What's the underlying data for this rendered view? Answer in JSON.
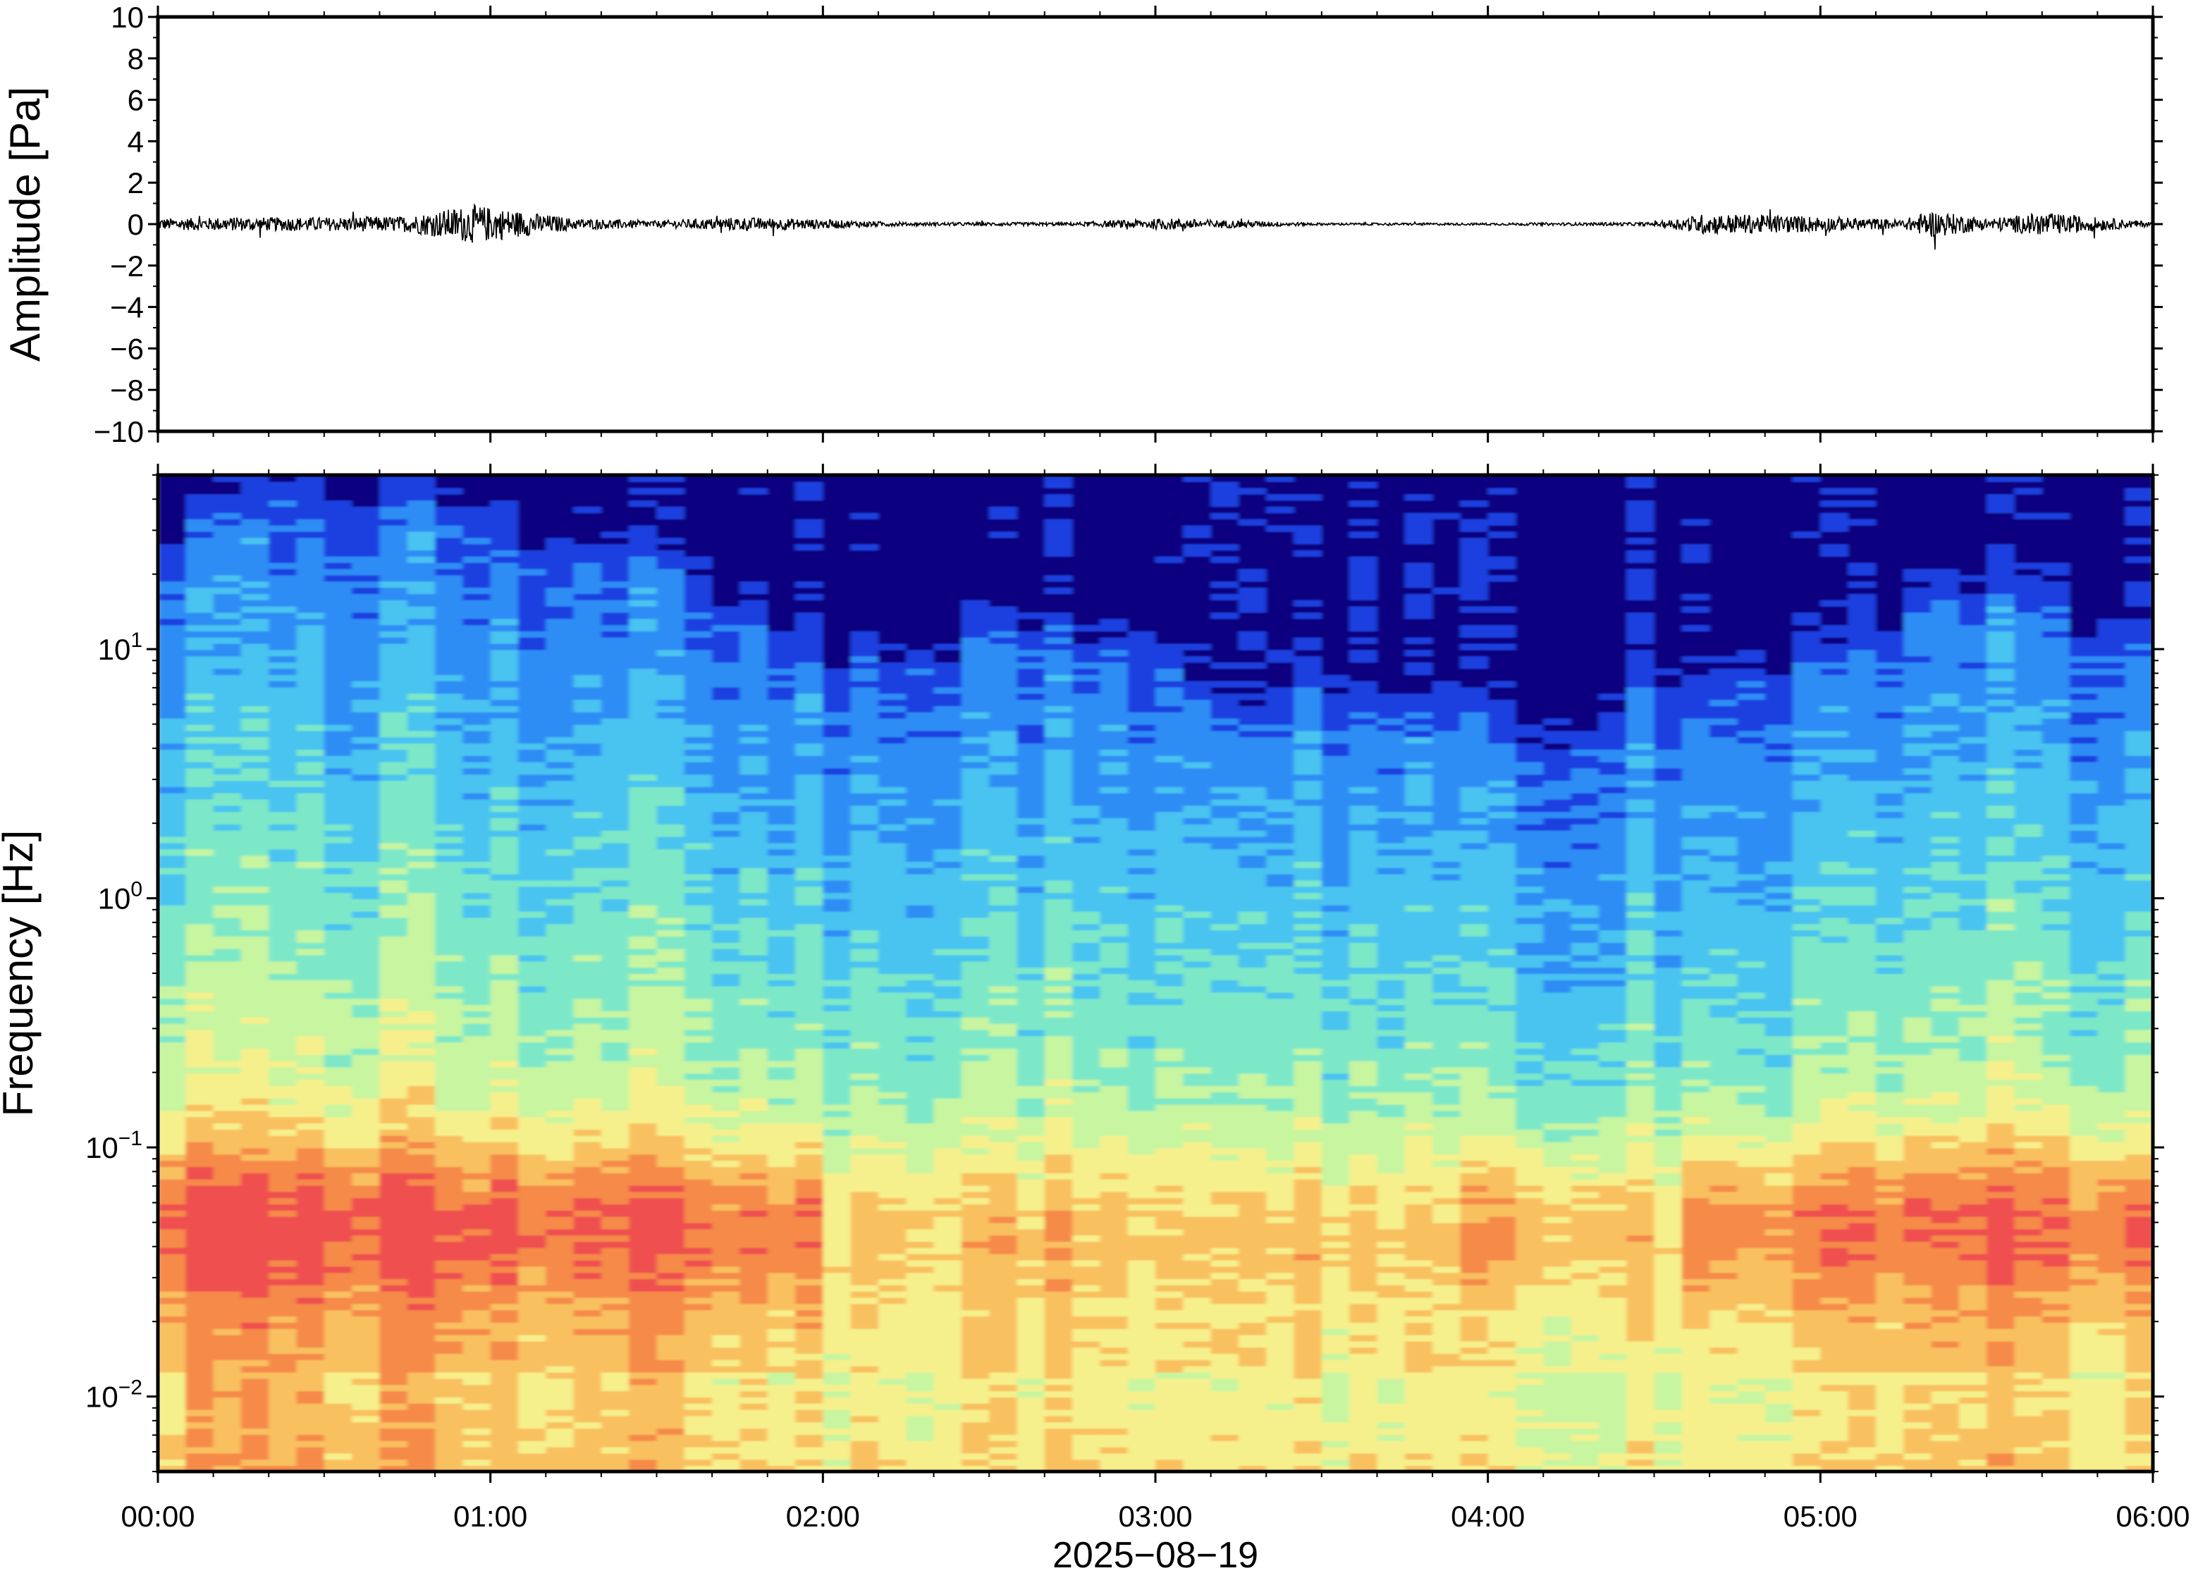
{
  "chart_data": [
    {
      "type": "line",
      "title": "",
      "xlabel": "",
      "ylabel": "Amplitude [Pa]",
      "ylim": [
        -10,
        10
      ],
      "yticks": [
        10,
        8,
        6,
        4,
        2,
        0,
        -2,
        -4,
        -6,
        -8,
        -10
      ],
      "ytick_labels": [
        "10",
        "8",
        "6",
        "4",
        "2",
        "0",
        "−2",
        "−4",
        "−6",
        "−8",
        "−10"
      ],
      "line_color": "#000000",
      "series_x_hours": [
        0,
        0.25,
        0.5,
        0.75,
        0.95,
        1.25,
        1.5,
        1.75,
        1.9,
        2.25,
        2.5,
        2.75,
        3.03,
        3.5,
        4.0,
        4.5,
        4.65,
        4.88,
        5.25,
        5.33,
        5.5,
        5.67,
        6.0
      ],
      "series_envelope_pa": [
        0.5,
        0.6,
        0.6,
        0.7,
        1.7,
        0.5,
        0.3,
        0.6,
        0.5,
        0.15,
        0.15,
        0.15,
        0.5,
        0.1,
        0.1,
        0.15,
        0.9,
        0.8,
        0.4,
        1.2,
        0.5,
        1.0,
        0.2
      ]
    },
    {
      "type": "heatmap",
      "title": "",
      "xlabel": "2025−08−19",
      "ylabel": "Frequency [Hz]",
      "yscale": "log",
      "ylim": [
        0.005,
        50
      ],
      "yticks": [
        {
          "base": "10",
          "exp": "1"
        },
        {
          "base": "10",
          "exp": "0"
        },
        {
          "base": "10",
          "exp": "−1"
        },
        {
          "base": "10",
          "exp": "−2"
        }
      ],
      "colormap": [
        "#0b0080",
        "#1a3fe0",
        "#2f8df5",
        "#48c3f0",
        "#7de8c8",
        "#c8f5a0",
        "#f6f08c",
        "#f9c060",
        "#f58a48",
        "#ef5050"
      ],
      "xticks": [
        "00:00",
        "01:00",
        "02:00",
        "03:00",
        "04:00",
        "05:00",
        "06:00"
      ],
      "x_hours": [
        0,
        1,
        2,
        3,
        4,
        5,
        6
      ],
      "upper_noise_edge_hz_by_hour": [
        [
          0,
          20
        ],
        [
          0.5,
          40
        ],
        [
          1.0,
          30
        ],
        [
          1.5,
          18
        ],
        [
          2.0,
          8
        ],
        [
          2.5,
          10
        ],
        [
          3.0,
          10
        ],
        [
          3.25,
          4
        ],
        [
          3.5,
          6
        ],
        [
          4.0,
          4
        ],
        [
          4.5,
          5
        ],
        [
          4.75,
          8
        ],
        [
          5.0,
          8
        ],
        [
          5.5,
          15
        ],
        [
          6.0,
          10
        ]
      ]
    }
  ]
}
